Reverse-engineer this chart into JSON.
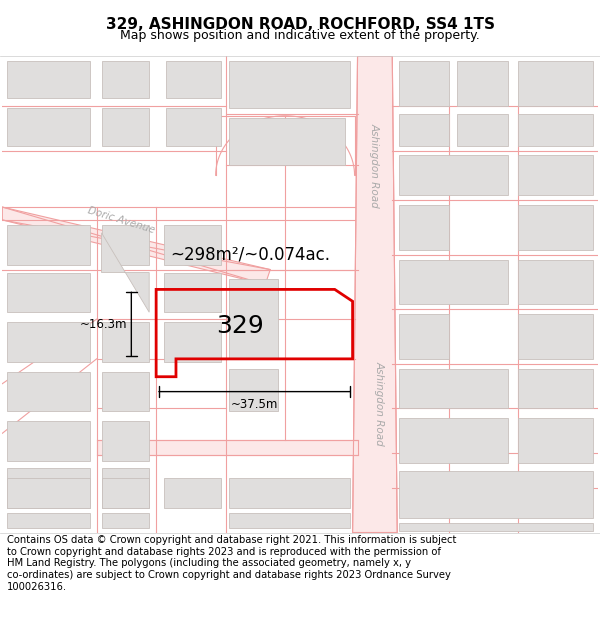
{
  "title": "329, ASHINGDON ROAD, ROCHFORD, SS4 1TS",
  "subtitle": "Map shows position and indicative extent of the property.",
  "footer": "Contains OS data © Crown copyright and database right 2021. This information is subject\nto Crown copyright and database rights 2023 and is reproduced with the permission of\nHM Land Registry. The polygons (including the associated geometry, namely x, y\nco-ordinates) are subject to Crown copyright and database rights 2023 Ordnance Survey\n100026316.",
  "map_bg": "#ffffff",
  "road_line_color": "#f0a0a0",
  "road_fill_color": "#fce8e8",
  "building_color": "#e0dedd",
  "building_edge": "#c8c0bc",
  "plot_color": "#e00000",
  "area_label": "~298m²/~0.074ac.",
  "house_number": "329",
  "dim_width": "~37.5m",
  "dim_height": "~16.3m",
  "street_label_ashingdon_top": "Ashingdon Road",
  "street_label_ashingdon_bot": "Ashingdon Road",
  "street_label_doric": "Doric Avenue",
  "title_fontsize": 11,
  "subtitle_fontsize": 9,
  "footer_fontsize": 7.2
}
